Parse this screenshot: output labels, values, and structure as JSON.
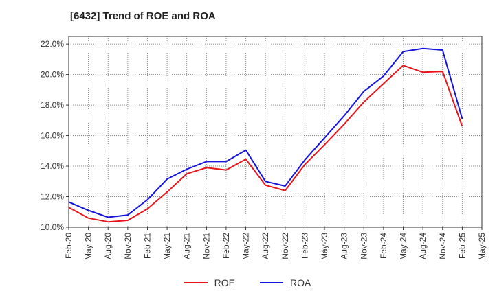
{
  "title": "[6432]  Trend of ROE and ROA",
  "chart_data": {
    "type": "line",
    "title": "[6432]  Trend of ROE and ROA",
    "xlabel": "",
    "ylabel": "",
    "ylim": [
      10.0,
      22.5
    ],
    "yticks": [
      10.0,
      12.0,
      14.0,
      16.0,
      18.0,
      20.0,
      22.0
    ],
    "ytick_labels": [
      "10.0%",
      "12.0%",
      "14.0%",
      "16.0%",
      "18.0%",
      "20.0%",
      "22.0%"
    ],
    "categories": [
      "Feb-20",
      "May-20",
      "Aug-20",
      "Nov-20",
      "Feb-21",
      "May-21",
      "Aug-21",
      "Nov-21",
      "Feb-22",
      "May-22",
      "Aug-22",
      "Nov-22",
      "Feb-23",
      "May-23",
      "Aug-23",
      "Nov-23",
      "Feb-24",
      "May-24",
      "Aug-24",
      "Nov-24",
      "Feb-25",
      "May-25"
    ],
    "grid": true,
    "legend_position": "bottom",
    "series": [
      {
        "name": "ROE",
        "color": "#e8141a",
        "values": [
          11.3,
          10.6,
          10.35,
          10.45,
          11.2,
          12.3,
          13.5,
          13.9,
          13.75,
          14.45,
          12.75,
          12.4,
          14.1,
          15.4,
          16.75,
          18.2,
          19.4,
          20.6,
          20.15,
          20.2,
          16.6,
          null
        ]
      },
      {
        "name": "ROA",
        "color": "#1414e0",
        "values": [
          11.65,
          11.1,
          10.65,
          10.8,
          11.8,
          13.15,
          13.8,
          14.3,
          14.3,
          15.05,
          13.0,
          12.7,
          14.4,
          15.85,
          17.3,
          18.9,
          19.9,
          21.5,
          21.7,
          21.6,
          17.1,
          null
        ]
      }
    ]
  }
}
